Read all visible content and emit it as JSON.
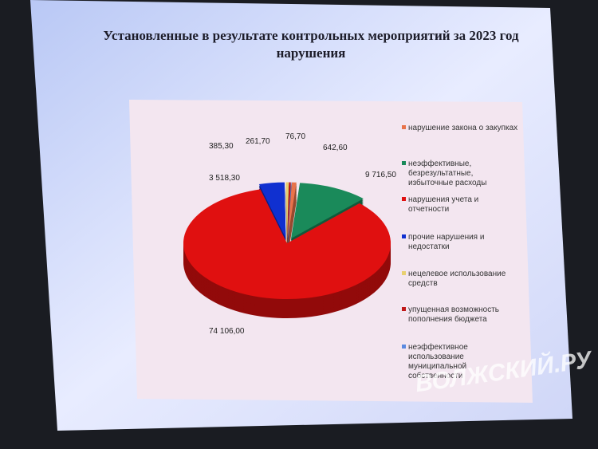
{
  "chart_data": {
    "type": "pie",
    "title": "Установленные в результате контрольных мероприятий за 2023 год нарушения",
    "categories": [
      "нарушение закона о закупках",
      "неэффективные, безрезультатные, избыточные расходы",
      "нарушения учета и отчетности",
      "прочие нарушения и недостатки",
      "нецелевое использование средств",
      "упущенная возможность пополнения бюджета",
      "неэффективное использование муниципальной собственности"
    ],
    "values": [
      642.6,
      9716.5,
      74106,
      3518.3,
      385.3,
      261.7,
      76.7
    ],
    "value_labels": [
      "642,60",
      "9 716,50",
      "74 106,00",
      "3 518,30",
      "385,30",
      "261,70",
      "76,70"
    ],
    "colors": [
      "#e8734a",
      "#1a8a5a",
      "#e01010",
      "#1030d0",
      "#e8d070",
      "#c01818",
      "#5a8ae0"
    ]
  },
  "watermark": "ВОЛЖСКИЙ.РУ"
}
